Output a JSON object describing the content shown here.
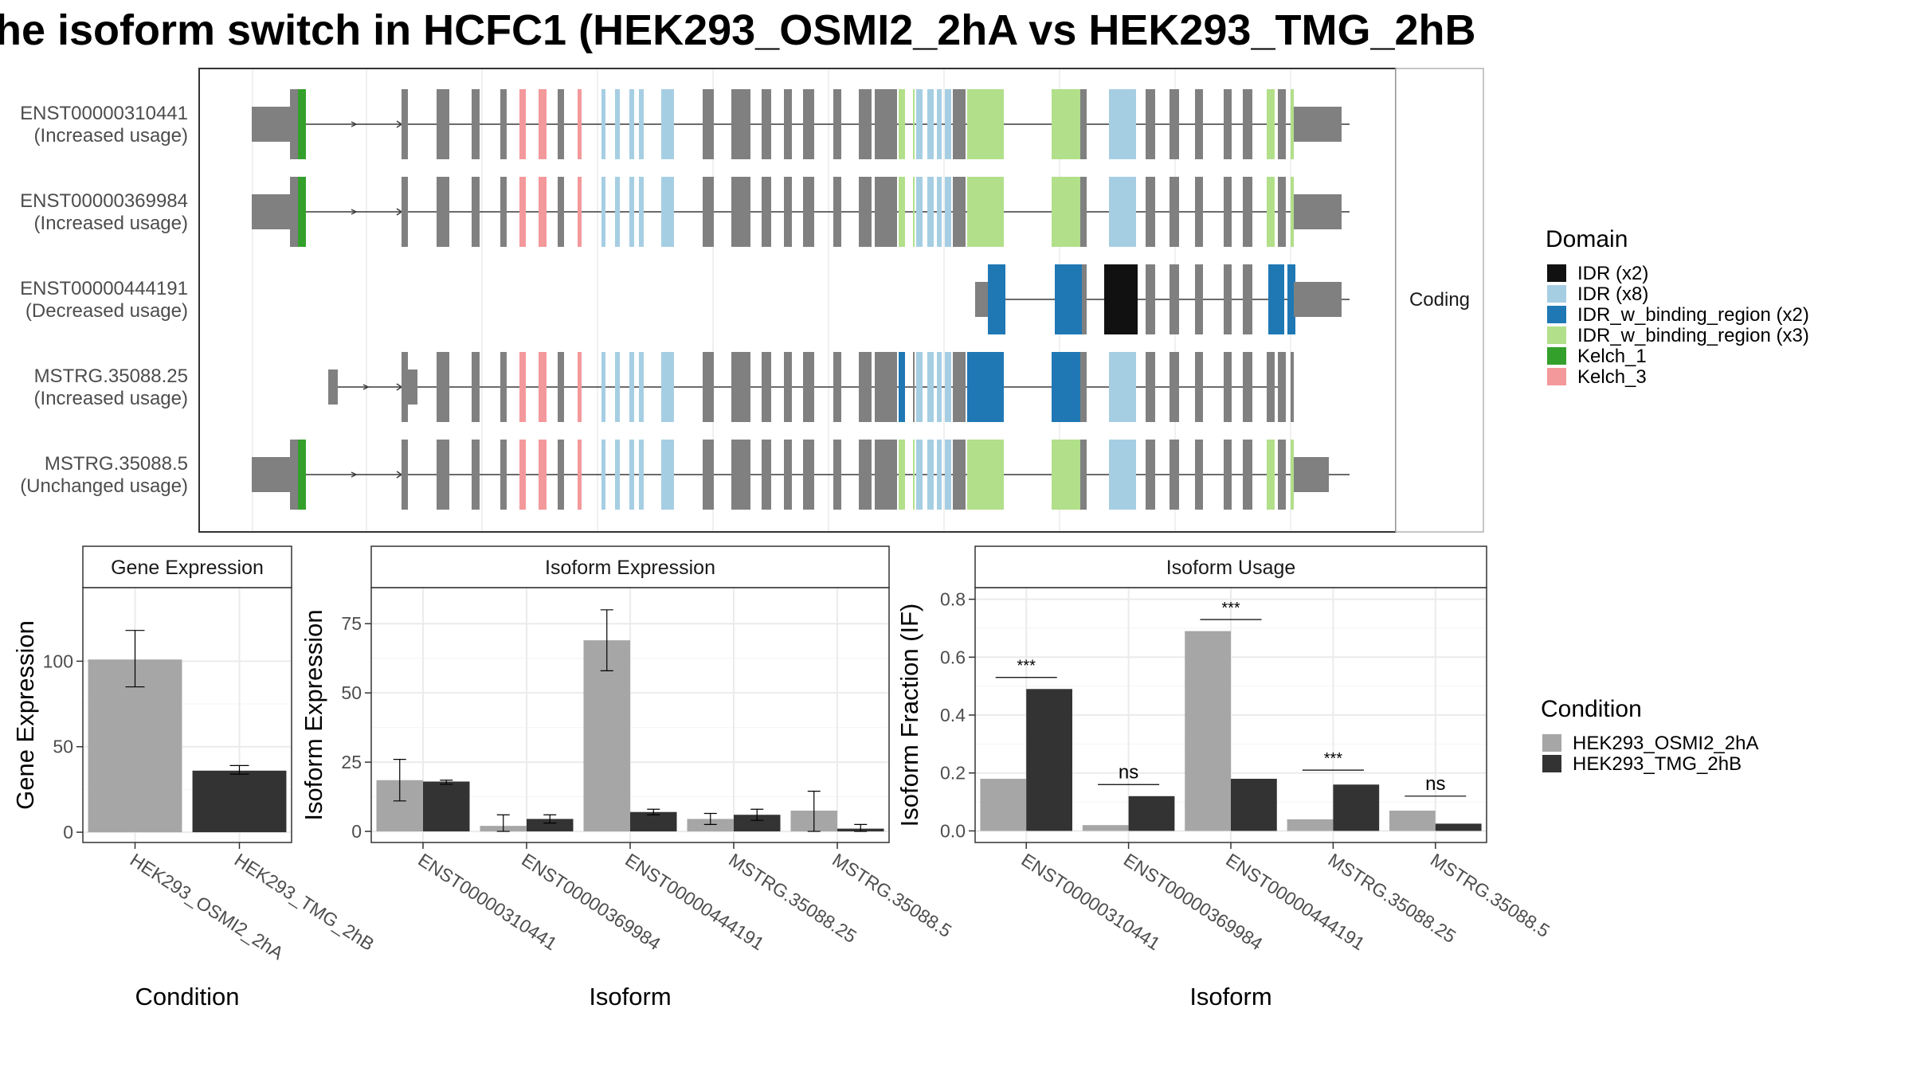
{
  "title": "he isoform switch in HCFC1 (HEK293_OSMI2_2hA vs HEK293_TMG_2hB",
  "colors": {
    "cond1": "#a6a6a6",
    "cond2": "#333333",
    "exon": "#808080",
    "intron_line": "#3a3a3a",
    "grid": "#ebebeb",
    "panel_border": "#333333",
    "strip_fill": "#ffffff",
    "facet_border": "#b3b3b3",
    "axis_text": "#4d4d4d"
  },
  "chart_data": [
    {
      "type": "isoform_structure",
      "facet_label": "Coding",
      "isoforms": [
        {
          "id": "ENST00000310441",
          "usage": "(Increased usage)"
        },
        {
          "id": "ENST00000369984",
          "usage": "(Increased usage)"
        },
        {
          "id": "ENST00000444191",
          "usage": "(Decreased usage)"
        },
        {
          "id": "MSTRG.35088.25",
          "usage": "(Increased usage)"
        },
        {
          "id": "MSTRG.35088.5",
          "usage": "(Unchanged usage)"
        }
      ],
      "legend_title": "Domain",
      "legend": [
        {
          "label": "IDR (x2)",
          "color": "#111111"
        },
        {
          "label": "IDR (x8)",
          "color": "#a6cee3"
        },
        {
          "label": "IDR_w_binding_region (x2)",
          "color": "#1f78b4"
        },
        {
          "label": "IDR_w_binding_region (x3)",
          "color": "#b2df8a"
        },
        {
          "label": "Kelch_1",
          "color": "#33a02c"
        },
        {
          "label": "Kelch_3",
          "color": "#f4999b"
        }
      ]
    },
    {
      "type": "bar",
      "strip": "Gene Expression",
      "xlabel": "Condition",
      "ylabel": "Gene Expression",
      "categories": [
        "HEK293_OSMI2_2hA",
        "HEK293_TMG_2hB"
      ],
      "values": [
        101,
        36
      ],
      "errors": [
        [
          85,
          118
        ],
        [
          34,
          39
        ]
      ],
      "ylim": [
        -6,
        143
      ],
      "yticks": [
        0,
        50,
        100
      ]
    },
    {
      "type": "bar",
      "strip": "Isoform Expression",
      "xlabel": "Isoform",
      "ylabel": "Isoform Expression",
      "categories": [
        "ENST00000310441",
        "ENST00000369984",
        "ENST00000444191",
        "MSTRG.35088.25",
        "MSTRG.35088.5"
      ],
      "series": [
        {
          "name": "HEK293_OSMI2_2hA",
          "values": [
            18.5,
            2,
            69,
            4.5,
            7.5
          ],
          "errors": [
            [
              11,
              26
            ],
            [
              0,
              6
            ],
            [
              58,
              80
            ],
            [
              2.5,
              6.5
            ],
            [
              0,
              14.5
            ]
          ]
        },
        {
          "name": "HEK293_TMG_2hB",
          "values": [
            18,
            4.5,
            7,
            6,
            1
          ],
          "errors": [
            [
              17,
              18.5
            ],
            [
              3,
              6
            ],
            [
              6,
              8
            ],
            [
              4,
              8
            ],
            [
              0,
              2.5
            ]
          ]
        }
      ],
      "ylim": [
        -4,
        88
      ],
      "yticks": [
        0,
        25,
        50,
        75
      ]
    },
    {
      "type": "bar",
      "strip": "Isoform Usage",
      "xlabel": "Isoform",
      "ylabel": "Isoform Fraction (IF)",
      "categories": [
        "ENST00000310441",
        "ENST00000369984",
        "ENST00000444191",
        "MSTRG.35088.25",
        "MSTRG.35088.5"
      ],
      "series": [
        {
          "name": "HEK293_OSMI2_2hA",
          "values": [
            0.18,
            0.02,
            0.69,
            0.04,
            0.07
          ]
        },
        {
          "name": "HEK293_TMG_2hB",
          "values": [
            0.49,
            0.12,
            0.18,
            0.16,
            0.025
          ]
        }
      ],
      "significance": [
        "***",
        "ns",
        "***",
        "***",
        "ns"
      ],
      "significance_level": [
        0.53,
        0.16,
        0.73,
        0.21,
        0.12
      ],
      "ylim": [
        -0.04,
        0.84
      ],
      "yticks": [
        0.0,
        0.2,
        0.4,
        0.6,
        0.8
      ],
      "ytick_labels": [
        "0.0",
        "0.2",
        "0.4",
        "0.6",
        "0.8"
      ]
    }
  ],
  "condition_legend": {
    "title": "Condition",
    "items": [
      {
        "label": "HEK293_OSMI2_2hA",
        "color": "#a6a6a6"
      },
      {
        "label": "HEK293_TMG_2hB",
        "color": "#333333"
      }
    ]
  }
}
